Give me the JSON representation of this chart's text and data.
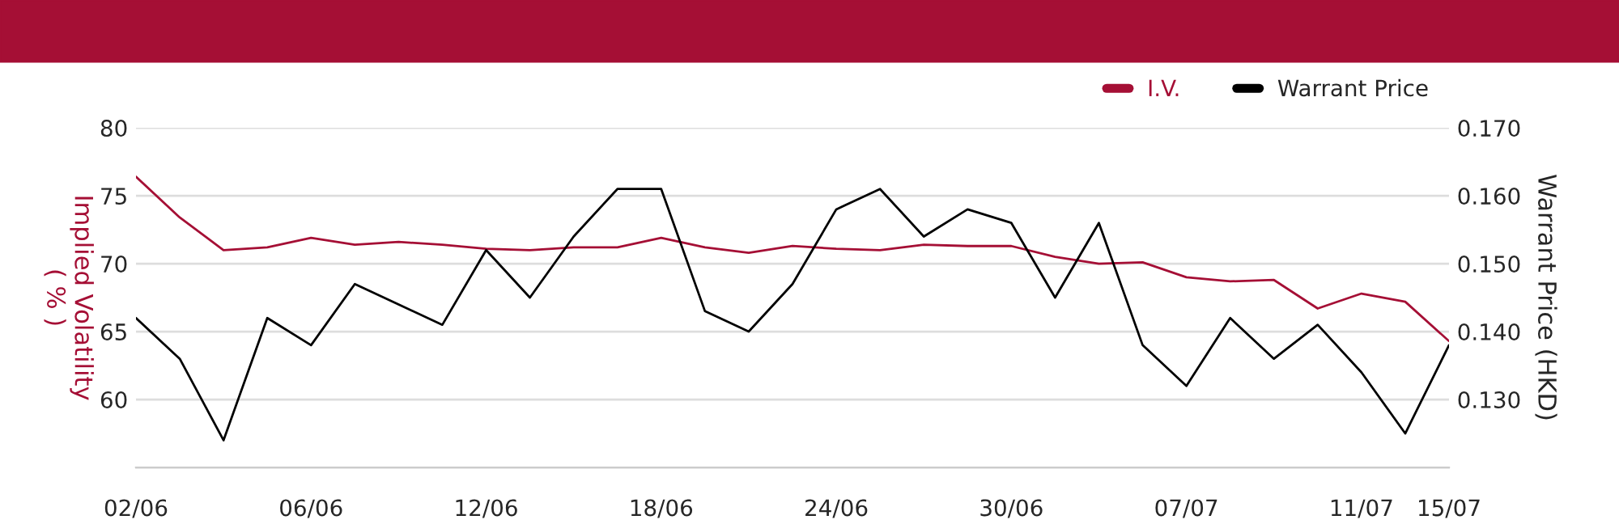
{
  "chart_data": {
    "type": "line",
    "categories": [
      "02/06",
      null,
      null,
      null,
      "06/06",
      null,
      null,
      null,
      "12/06",
      null,
      null,
      null,
      "18/06",
      null,
      null,
      null,
      "24/06",
      null,
      null,
      null,
      "30/06",
      null,
      null,
      null,
      "07/07",
      null,
      null,
      null,
      "11/07",
      null,
      "15/07"
    ],
    "series": [
      {
        "name": "I.V.",
        "color": "#a50f35",
        "values": [
          76.4,
          73.4,
          71.0,
          71.2,
          71.9,
          71.4,
          71.6,
          71.4,
          71.1,
          71.0,
          71.2,
          71.2,
          71.9,
          71.2,
          70.8,
          71.3,
          71.1,
          71.0,
          71.4,
          71.3,
          71.3,
          70.5,
          70.0,
          70.1,
          69.0,
          68.7,
          68.8,
          66.7,
          67.8,
          67.2,
          64.3
        ]
      },
      {
        "name": "Warrant Price",
        "color": "#000000",
        "axis": "y2",
        "values": [
          0.142,
          0.136,
          0.124,
          0.142,
          0.138,
          0.147,
          0.144,
          0.141,
          0.152,
          0.145,
          0.154,
          0.161,
          0.161,
          0.143,
          0.14,
          0.147,
          0.158,
          0.161,
          0.154,
          0.158,
          0.156,
          0.145,
          0.156,
          0.138,
          0.132,
          0.142,
          0.136,
          0.141,
          0.134,
          0.125,
          0.138
        ]
      }
    ],
    "ylabel": "Implied Volatility\n( % )",
    "y2label": "Warrant Price (HKD)",
    "ylim": [
      55,
      80
    ],
    "yticks": [
      60,
      65,
      70,
      75,
      80
    ],
    "y2lim": [
      0.12,
      0.17
    ],
    "y2ticks": [
      {
        "value": 0.13,
        "label": "0.130"
      },
      {
        "value": 0.14,
        "label": "0.140"
      },
      {
        "value": 0.15,
        "label": "0.150"
      },
      {
        "value": 0.16,
        "label": "0.160"
      },
      {
        "value": 0.17,
        "label": "0.170"
      }
    ],
    "grid": "y",
    "legend": "top right",
    "marker": "none",
    "line_style": "solid"
  }
}
